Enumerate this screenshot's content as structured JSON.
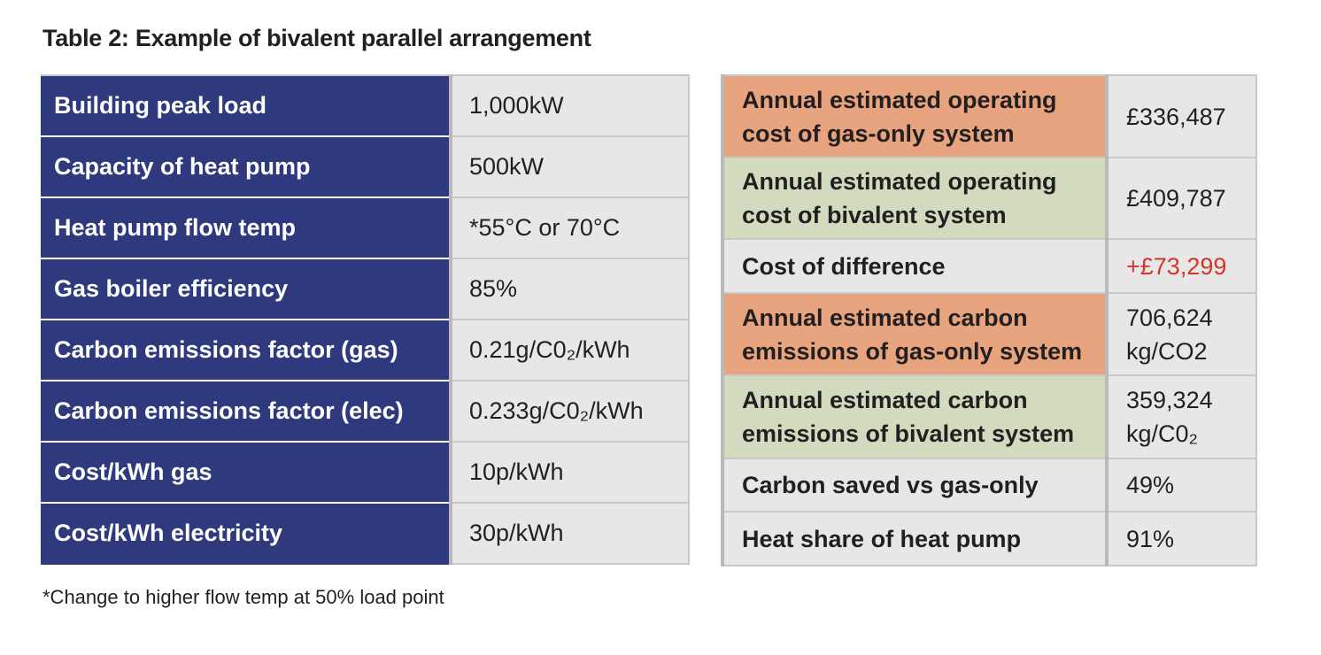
{
  "title": "Table 2: Example of bivalent parallel arrangement",
  "left_table": [
    {
      "label": "Building peak load",
      "value": "1,000kW"
    },
    {
      "label": "Capacity of heat pump",
      "value": "500kW"
    },
    {
      "label": "Heat pump flow temp",
      "value": "*55°C or 70°C"
    },
    {
      "label": "Gas boiler efficiency",
      "value": "85%"
    },
    {
      "label": "Carbon emissions factor (gas)",
      "value": "0.21g/C0₂/kWh"
    },
    {
      "label": "Carbon emissions factor (elec)",
      "value": "0.233g/C0₂/kWh"
    },
    {
      "label": "Cost/kWh gas",
      "value": "10p/kWh"
    },
    {
      "label": "Cost/kWh electricity",
      "value": "30p/kWh"
    }
  ],
  "right_table": [
    {
      "label": "Annual estimated operating cost of gas-only system",
      "value": "£336,487",
      "highlight": "#e8a47e"
    },
    {
      "label": "Annual estimated operating cost of bivalent system",
      "value": "£409,787",
      "highlight": "#d3dbbf"
    },
    {
      "label": "Cost of difference",
      "value": "+£73,299",
      "value_color": "#d2352a"
    },
    {
      "label": "Annual estimated carbon emissions of gas-only system",
      "value": "706,624 kg/CO2",
      "highlight": "#e8a47e"
    },
    {
      "label": "Annual estimated carbon emissions of bivalent system",
      "value": "359,324 kg/C0₂",
      "highlight": "#d3dbbf"
    },
    {
      "label": "Carbon saved vs gas-only",
      "value": "49%"
    },
    {
      "label": "Heat share of heat pump",
      "value": "91%"
    }
  ],
  "footnote": "*Change to higher flow temp at 50% load point",
  "colors": {
    "label_bg": "#2f3a7e",
    "cell_bg": "#e7e7e8",
    "orange": "#e8a47e",
    "green": "#d3dbbf",
    "red": "#d2352a"
  }
}
